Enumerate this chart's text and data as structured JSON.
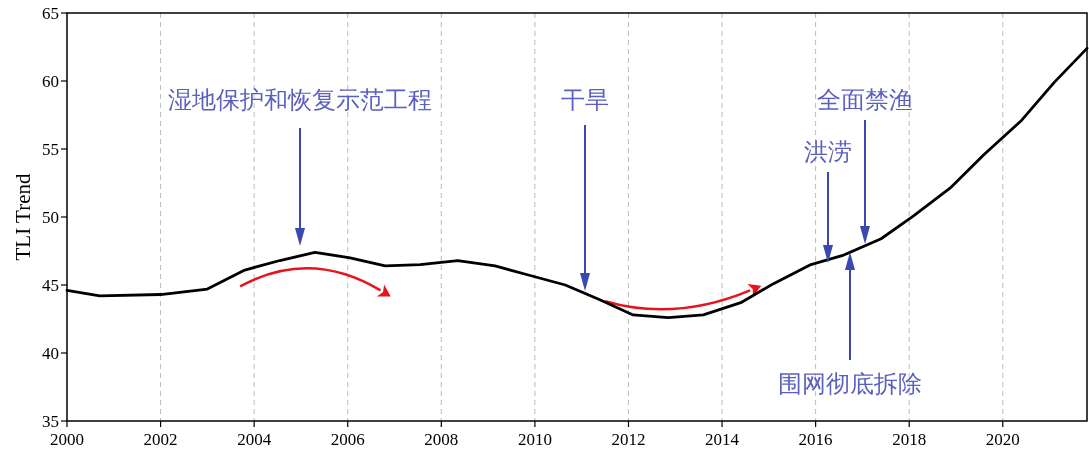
{
  "chart_data": {
    "type": "line",
    "ylabel": "TLI Trend",
    "xlim": [
      2000,
      2021.8
    ],
    "ylim": [
      35,
      65
    ],
    "xticks": [
      2000,
      2002,
      2004,
      2006,
      2008,
      2010,
      2012,
      2014,
      2016,
      2018,
      2020
    ],
    "yticks": [
      35,
      40,
      45,
      50,
      55,
      60,
      65
    ],
    "grid": "x",
    "marker": "none",
    "line_style": "solid",
    "x": [
      2000,
      2000.7,
      2002,
      2003,
      2003.8,
      2004.55,
      2005.3,
      2006.05,
      2006.8,
      2007.55,
      2008.35,
      2009.15,
      2009.9,
      2010.65,
      2011.4,
      2012.1,
      2012.85,
      2013.6,
      2014.4,
      2015.1,
      2015.9,
      2016.6,
      2017.4,
      2018.1,
      2018.9,
      2019.6,
      2020.4,
      2021.1,
      2021.8
    ],
    "series": [
      {
        "color": "#000000",
        "values": [
          44.6,
          44.2,
          44.3,
          44.7,
          46.1,
          46.8,
          47.4,
          47.0,
          46.4,
          46.5,
          46.8,
          46.4,
          45.7,
          45.0,
          43.9,
          42.8,
          42.6,
          42.8,
          43.7,
          45.1,
          46.5,
          47.2,
          48.4,
          50.1,
          52.2,
          54.6,
          57.1,
          59.9,
          62.4
        ]
      }
    ],
    "annotations": [
      "湿地保护和恢复示范工程",
      "干旱",
      "洪涝",
      "全面禁渔",
      "围网彻底拆除"
    ]
  }
}
